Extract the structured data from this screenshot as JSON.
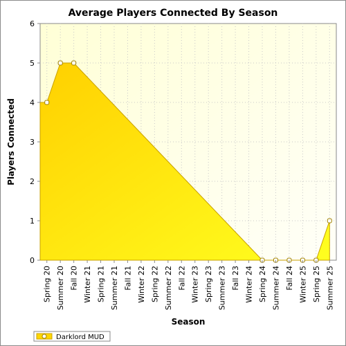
{
  "chart_data": {
    "type": "area",
    "title": "Average Players Connected By Season",
    "xlabel": "Season",
    "ylabel": "Players Connected",
    "ylim": [
      0,
      6
    ],
    "yticks": [
      0,
      1,
      2,
      3,
      4,
      5,
      6
    ],
    "grid": true,
    "legend_position": "bottom-left",
    "categories": [
      "Spring 20",
      "Summer 20",
      "Fall 20",
      "Winter 21",
      "Spring 21",
      "Summer 21",
      "Fall 21",
      "Winter 22",
      "Spring 22",
      "Summer 22",
      "Fall 22",
      "Winter 23",
      "Spring 23",
      "Summer 23",
      "Fall 23",
      "Winter 24",
      "Spring 24",
      "Summer 24",
      "Fall 24",
      "Winter 25",
      "Spring 25",
      "Summer 25"
    ],
    "series": [
      {
        "name": "Darklord MUD",
        "color": "#ffd700",
        "values": [
          4,
          5,
          5,
          null,
          null,
          null,
          null,
          null,
          null,
          null,
          null,
          null,
          null,
          null,
          null,
          null,
          0,
          0,
          0,
          0,
          0,
          1
        ]
      }
    ]
  }
}
